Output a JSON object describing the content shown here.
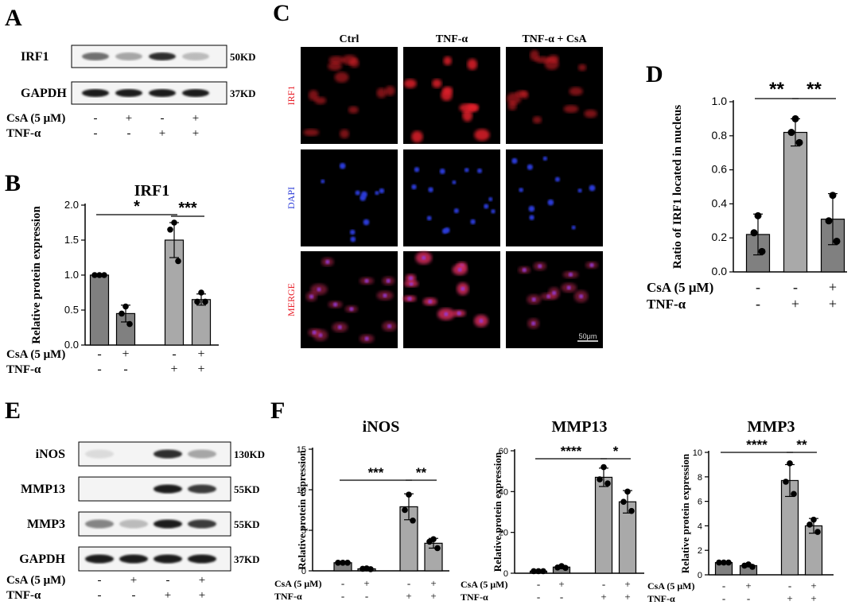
{
  "panels": {
    "A": "A",
    "B": "B",
    "C": "C",
    "D": "D",
    "E": "E",
    "F": "F"
  },
  "western_a": {
    "bands": [
      {
        "name": "IRF1",
        "size": "50KD",
        "intensities": [
          0.55,
          0.3,
          0.85,
          0.2
        ]
      },
      {
        "name": "GAPDH",
        "size": "37KD",
        "intensities": [
          0.95,
          0.95,
          0.95,
          0.95
        ]
      }
    ],
    "treatments": [
      {
        "label": "CsA (5 μM)",
        "signs": [
          "-",
          "+",
          "-",
          "+"
        ]
      },
      {
        "label": "TNF-α",
        "signs": [
          "-",
          "-",
          "+",
          "+"
        ]
      }
    ]
  },
  "micrograph": {
    "columns": [
      "Ctrl",
      "TNF-α",
      "TNF-α + CsA"
    ],
    "rows": [
      {
        "label": "IRF1",
        "color": "#e8202a"
      },
      {
        "label": "DAPI",
        "color": "#2b3bd8"
      },
      {
        "label": "MERGE",
        "color": "#e8202a"
      }
    ],
    "scale_bar": "50μm"
  },
  "western_e": {
    "bands": [
      {
        "name": "iNOS",
        "size": "130KD",
        "intensities": [
          0.05,
          0.0,
          0.85,
          0.3
        ]
      },
      {
        "name": "MMP13",
        "size": "55KD",
        "intensities": [
          0.0,
          0.0,
          0.95,
          0.8
        ]
      },
      {
        "name": "MMP3",
        "size": "55KD",
        "intensities": [
          0.45,
          0.2,
          0.95,
          0.8
        ]
      },
      {
        "name": "GAPDH",
        "size": "37KD",
        "intensities": [
          0.95,
          0.95,
          0.95,
          0.95
        ]
      }
    ],
    "treatments": [
      {
        "label": "CsA (5 μM)",
        "signs": [
          "-",
          "+",
          "-",
          "+"
        ]
      },
      {
        "label": "TNF-α",
        "signs": [
          "-",
          "-",
          "+",
          "+"
        ]
      }
    ]
  },
  "chart_data": [
    {
      "id": "B",
      "type": "bar",
      "title": "IRF1",
      "ylabel": "Relative protein expression",
      "ylim": [
        0,
        2.0
      ],
      "yticks": [
        "0.0",
        "0.5",
        "1.0",
        "1.5",
        "2.0"
      ],
      "values": [
        1.0,
        0.45,
        1.5,
        0.65
      ],
      "errors": [
        0.0,
        0.12,
        0.25,
        0.08
      ],
      "points": [
        [
          1.0,
          1.0,
          1.0
        ],
        [
          0.55,
          0.45,
          0.3
        ],
        [
          1.75,
          1.65,
          1.2
        ],
        [
          0.75,
          0.62,
          0.62
        ]
      ],
      "colors": [
        "#808080",
        "#808080",
        "#a9a9a9",
        "#a9a9a9"
      ],
      "treatments": [
        {
          "label": "CsA (5 μM)",
          "signs": [
            "-",
            "+",
            "-",
            "+"
          ]
        },
        {
          "label": "TNF-α",
          "signs": [
            "-",
            "-",
            "+",
            "+"
          ]
        }
      ],
      "significance": [
        {
          "from": 0,
          "to": 2,
          "text": "*"
        },
        {
          "from": 2,
          "to": 3,
          "text": "***"
        }
      ]
    },
    {
      "id": "D",
      "type": "bar",
      "title": "",
      "ylabel": "Ratio of IRF1 located in nucleus",
      "ylim": [
        0,
        1.0
      ],
      "yticks": [
        "0.0",
        "0.2",
        "0.4",
        "0.6",
        "0.8",
        "1.0"
      ],
      "values": [
        0.22,
        0.82,
        0.31
      ],
      "errors": [
        0.12,
        0.08,
        0.15
      ],
      "points": [
        [
          0.33,
          0.23,
          0.12
        ],
        [
          0.9,
          0.82,
          0.76
        ],
        [
          0.45,
          0.3,
          0.18
        ]
      ],
      "colors": [
        "#808080",
        "#a9a9a9",
        "#808080"
      ],
      "treatments": [
        {
          "label": "CsA (5 μM)",
          "signs": [
            "-",
            "-",
            "+"
          ]
        },
        {
          "label": "TNF-α",
          "signs": [
            "-",
            "+",
            "+"
          ]
        }
      ],
      "significance": [
        {
          "from": 0,
          "to": 1,
          "text": "**"
        },
        {
          "from": 1,
          "to": 2,
          "text": "**"
        }
      ]
    },
    {
      "id": "F1",
      "type": "bar",
      "title": "iNOS",
      "ylabel": "Relative protein expression",
      "ylim": [
        0,
        15
      ],
      "yticks": [
        "0",
        "5",
        "10",
        "15"
      ],
      "values": [
        1.0,
        0.25,
        7.9,
        3.4
      ],
      "errors": [
        0.0,
        0.1,
        1.6,
        0.6
      ],
      "points": [
        [
          1.0,
          1.0,
          1.0
        ],
        [
          0.3,
          0.25,
          0.2
        ],
        [
          9.4,
          7.5,
          6.2
        ],
        [
          3.9,
          3.6,
          2.8
        ]
      ],
      "colors": [
        "#808080",
        "#808080",
        "#a9a9a9",
        "#a9a9a9"
      ],
      "treatments": [
        {
          "label": "CsA (5 μM)",
          "signs": [
            "-",
            "+",
            "-",
            "+"
          ]
        },
        {
          "label": "TNF-α",
          "signs": [
            "-",
            "-",
            "+",
            "+"
          ]
        }
      ],
      "significance": [
        {
          "from": 0,
          "to": 2,
          "text": "***"
        },
        {
          "from": 2,
          "to": 3,
          "text": "**"
        }
      ]
    },
    {
      "id": "F2",
      "type": "bar",
      "title": "MMP13",
      "ylabel": "Relative protein expression",
      "ylim": [
        0,
        60
      ],
      "yticks": [
        "0",
        "20",
        "40",
        "60"
      ],
      "values": [
        1.0,
        3.0,
        47.0,
        35.0
      ],
      "errors": [
        0.0,
        0.8,
        4.5,
        5.5
      ],
      "points": [
        [
          1.0,
          1.0,
          1.0
        ],
        [
          3.5,
          2.8,
          2.6
        ],
        [
          52.0,
          46.0,
          44.0
        ],
        [
          40.0,
          35.0,
          30.5
        ]
      ],
      "colors": [
        "#808080",
        "#808080",
        "#a9a9a9",
        "#a9a9a9"
      ],
      "treatments": [
        {
          "label": "CsA (5 μM)",
          "signs": [
            "-",
            "+",
            "-",
            "+"
          ]
        },
        {
          "label": "TNF-α",
          "signs": [
            "-",
            "-",
            "+",
            "+"
          ]
        }
      ],
      "significance": [
        {
          "from": 0,
          "to": 2,
          "text": "****"
        },
        {
          "from": 2,
          "to": 3,
          "text": "*"
        }
      ]
    },
    {
      "id": "F3",
      "type": "bar",
      "title": "MMP3",
      "ylabel": "Relative protein expression",
      "ylim": [
        0,
        10
      ],
      "yticks": [
        "0",
        "2",
        "4",
        "6",
        "8",
        "10"
      ],
      "values": [
        1.0,
        0.75,
        7.7,
        4.0
      ],
      "errors": [
        0.0,
        0.1,
        1.3,
        0.6
      ],
      "points": [
        [
          1.0,
          1.0,
          1.0
        ],
        [
          0.85,
          0.75,
          0.65
        ],
        [
          9.1,
          7.6,
          6.6
        ],
        [
          4.5,
          4.1,
          3.5
        ]
      ],
      "colors": [
        "#808080",
        "#808080",
        "#a9a9a9",
        "#a9a9a9"
      ],
      "treatments": [
        {
          "label": "CsA (5 μM)",
          "signs": [
            "-",
            "+",
            "-",
            "+"
          ]
        },
        {
          "label": "TNF-α",
          "signs": [
            "-",
            "-",
            "+",
            "+"
          ]
        }
      ],
      "significance": [
        {
          "from": 0,
          "to": 2,
          "text": "****"
        },
        {
          "from": 2,
          "to": 3,
          "text": "**"
        }
      ]
    }
  ]
}
